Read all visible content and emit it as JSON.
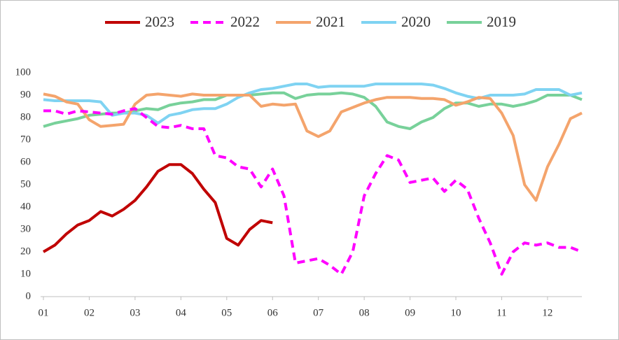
{
  "chart_data": {
    "type": "line",
    "x": [
      1,
      1.25,
      1.5,
      1.75,
      2,
      2.25,
      2.5,
      2.75,
      3,
      3.25,
      3.5,
      3.75,
      4,
      4.25,
      4.5,
      4.75,
      5,
      5.25,
      5.5,
      5.75,
      6,
      6.25,
      6.5,
      6.75,
      7,
      7.25,
      7.5,
      7.75,
      8,
      8.25,
      8.5,
      8.75,
      9,
      9.25,
      9.5,
      9.75,
      10,
      10.25,
      10.5,
      10.75,
      11,
      11.25,
      11.5,
      11.75,
      12,
      12.25,
      12.5,
      12.75
    ],
    "xlim": [
      1,
      12.75
    ],
    "xticks": [
      {
        "value": 1,
        "label": "01"
      },
      {
        "value": 2,
        "label": "02"
      },
      {
        "value": 3,
        "label": "03"
      },
      {
        "value": 4,
        "label": "04"
      },
      {
        "value": 5,
        "label": "05"
      },
      {
        "value": 6,
        "label": "06"
      },
      {
        "value": 7,
        "label": "07"
      },
      {
        "value": 8,
        "label": "08"
      },
      {
        "value": 9,
        "label": "09"
      },
      {
        "value": 10,
        "label": "10"
      },
      {
        "value": 11,
        "label": "11"
      },
      {
        "value": 12,
        "label": "12"
      }
    ],
    "ylim": [
      0,
      100
    ],
    "yticks": [
      0,
      10,
      20,
      30,
      40,
      50,
      60,
      70,
      80,
      90,
      100
    ],
    "legend": "top",
    "series": [
      {
        "name": "2023",
        "color": "#c00000",
        "dashed": false,
        "values": [
          20,
          23,
          28,
          32,
          34,
          38,
          36,
          39,
          43,
          49,
          56,
          59,
          59,
          55,
          48,
          42,
          26,
          23,
          30,
          34,
          33,
          null,
          null,
          null,
          null,
          null,
          null,
          null,
          null,
          null,
          null,
          null,
          null,
          null,
          null,
          null,
          null,
          null,
          null,
          null,
          null,
          null,
          null,
          null,
          null,
          null,
          null,
          null
        ]
      },
      {
        "name": "2022",
        "color": "#ff00ff",
        "dashed": true,
        "values": [
          83,
          83,
          81.5,
          83,
          82.5,
          82,
          81.5,
          83,
          84,
          80,
          76,
          75.5,
          76.5,
          75,
          75,
          63,
          62,
          58,
          57,
          49,
          57,
          45,
          15,
          16,
          17,
          14,
          10,
          20,
          45,
          55,
          63,
          61,
          51,
          52,
          53,
          47,
          52,
          48,
          35,
          24,
          10,
          20,
          24,
          23,
          24,
          22,
          22,
          20
        ]
      },
      {
        "name": "2021",
        "color": "#f4a46c",
        "dashed": false,
        "values": [
          90.5,
          89.5,
          87,
          86,
          79,
          76,
          76.5,
          77,
          86,
          90,
          90.5,
          90,
          89.5,
          90.5,
          90,
          90,
          90,
          90,
          90,
          85,
          86,
          85.5,
          86,
          74,
          71.5,
          74,
          82.5,
          84.5,
          86.5,
          88,
          89,
          89,
          89,
          88.5,
          88.5,
          88,
          85.5,
          87,
          89,
          88.5,
          82,
          72,
          50,
          43,
          58,
          68,
          79.5,
          82
        ]
      },
      {
        "name": "2020",
        "color": "#7fd3f2",
        "dashed": false,
        "values": [
          88,
          87.5,
          87.5,
          87.5,
          87.5,
          87,
          81,
          82,
          82,
          81,
          77.5,
          81,
          82,
          83.5,
          84,
          84,
          86,
          89,
          91,
          92.5,
          93,
          94,
          95,
          95,
          93.5,
          94,
          94,
          94,
          94,
          95,
          95,
          95,
          95,
          95,
          94.5,
          93,
          91,
          89.5,
          88.5,
          90,
          90,
          90,
          90.5,
          92.5,
          92.5,
          92.5,
          90,
          91
        ]
      },
      {
        "name": "2019",
        "color": "#78d19a",
        "dashed": false,
        "values": [
          76,
          77.5,
          78.5,
          79.5,
          81,
          81.5,
          82,
          82,
          83,
          84,
          83.5,
          85.5,
          86.5,
          87,
          88,
          88,
          90,
          90,
          90,
          90.5,
          91,
          91,
          88.5,
          90,
          90.5,
          90.5,
          91,
          90.5,
          89,
          85,
          78,
          76,
          75,
          78,
          80,
          84,
          86.5,
          86.5,
          85,
          86,
          86,
          85,
          86,
          87.5,
          90,
          90,
          90,
          88
        ]
      }
    ]
  }
}
